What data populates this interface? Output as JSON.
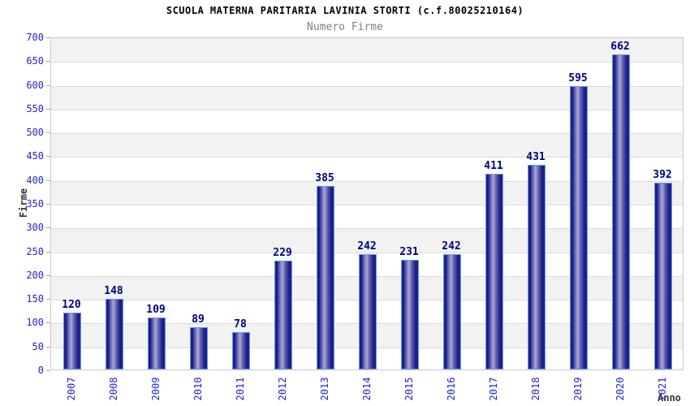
{
  "chart_data": {
    "type": "bar",
    "title": "SCUOLA MATERNA PARITARIA LAVINIA STORTI (c.f.80025210164)",
    "subtitle": "Numero Firme",
    "xlabel": "Anno",
    "ylabel": "Firme",
    "categories": [
      "2007",
      "2008",
      "2009",
      "2010",
      "2011",
      "2012",
      "2013",
      "2014",
      "2015",
      "2016",
      "2017",
      "2018",
      "2019",
      "2020",
      "2021"
    ],
    "values": [
      120,
      148,
      109,
      89,
      78,
      229,
      385,
      242,
      231,
      242,
      411,
      431,
      595,
      662,
      392
    ],
    "ylim": [
      0,
      700
    ],
    "ytick_step": 50,
    "yticks": [
      0,
      50,
      100,
      150,
      200,
      250,
      300,
      350,
      400,
      450,
      500,
      550,
      600,
      650,
      700
    ],
    "grid": "horizontal gridlines every 50 with alternating gray/white bands",
    "legend_position": "none",
    "colors": {
      "bar_dark": "#1c1c8a",
      "bar_light": "#a8a8d8",
      "bar_border": "#5f9de2",
      "value_label": "#000080",
      "tick_label": "#2323cc",
      "axis_title": "#333333",
      "title": "#000000",
      "subtitle": "#808080",
      "band": "#f2f2f2",
      "gridline": "#dcdcdc",
      "plot_border": "#c9c9c9",
      "background": "#ffffff"
    }
  }
}
